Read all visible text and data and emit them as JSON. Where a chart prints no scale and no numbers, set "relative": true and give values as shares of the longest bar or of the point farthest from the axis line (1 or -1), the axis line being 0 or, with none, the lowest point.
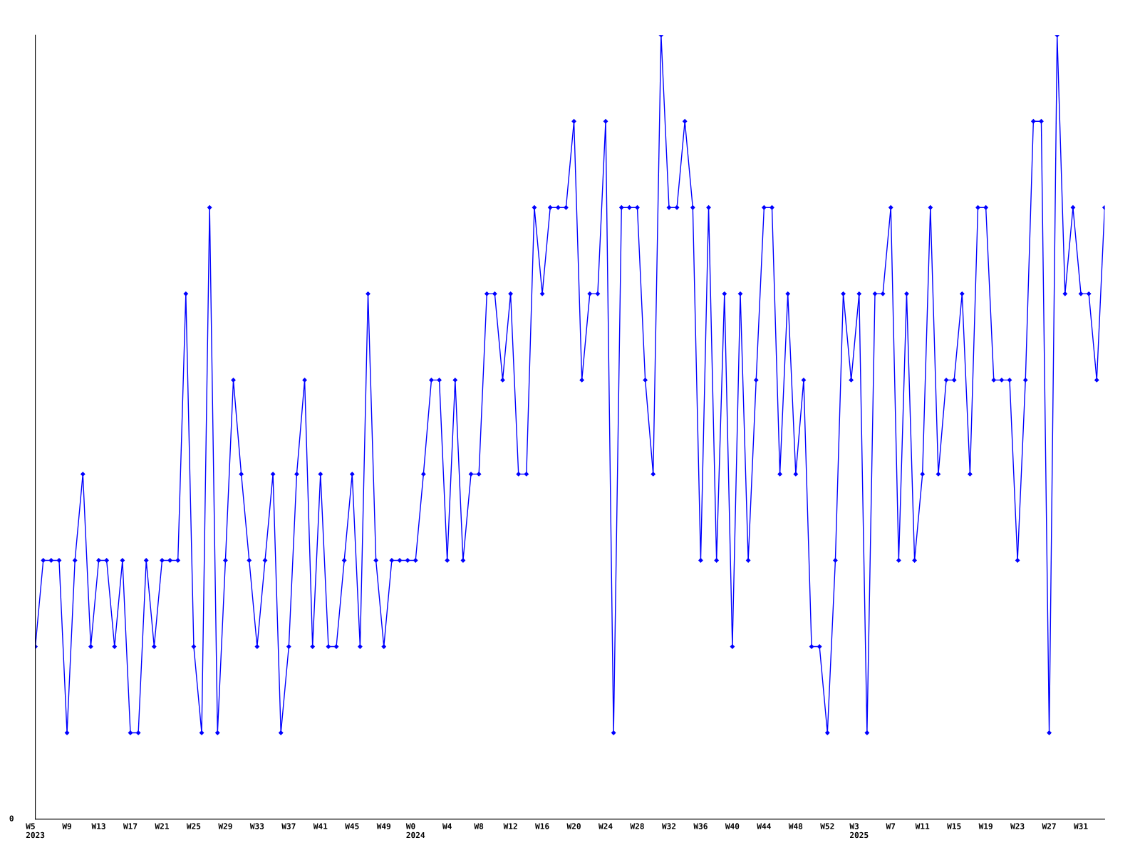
{
  "chart_data": {
    "type": "line",
    "relative": true,
    "categories": [
      "W5\n2023",
      null,
      null,
      null,
      "W9",
      null,
      null,
      null,
      "W13",
      null,
      null,
      null,
      "W17",
      null,
      null,
      null,
      "W21",
      null,
      null,
      null,
      "W25",
      null,
      null,
      null,
      "W29",
      null,
      null,
      null,
      "W33",
      null,
      null,
      null,
      "W37",
      null,
      null,
      null,
      "W41",
      null,
      null,
      null,
      "W45",
      null,
      null,
      null,
      "W49",
      null,
      null,
      null,
      "W0\n2024",
      null,
      null,
      null,
      "W4",
      null,
      null,
      null,
      "W8",
      null,
      null,
      null,
      "W12",
      null,
      null,
      null,
      "W16",
      null,
      null,
      null,
      "W20",
      null,
      null,
      null,
      "W24",
      null,
      null,
      null,
      "W28",
      null,
      null,
      null,
      "W32",
      null,
      null,
      null,
      "W36",
      null,
      null,
      null,
      "W40",
      null,
      null,
      null,
      "W44",
      null,
      null,
      null,
      "W48",
      null,
      null,
      null,
      "W52",
      null,
      null,
      null,
      "W3\n2025",
      null,
      null,
      null,
      "W7",
      null,
      null,
      null,
      "W11",
      null,
      null,
      null,
      "W15",
      null,
      null,
      null,
      "W19",
      null,
      null,
      null,
      "W23",
      null,
      null,
      null,
      "W27",
      null,
      null,
      null,
      "W31",
      null,
      null,
      null
    ],
    "series": [
      {
        "color": "#0000ff",
        "values": [
          0.22,
          0.33,
          0.33,
          0.33,
          0.11,
          0.33,
          0.44,
          0.22,
          0.33,
          0.33,
          0.22,
          0.33,
          0.11,
          0.11,
          0.33,
          0.22,
          0.33,
          0.33,
          0.33,
          0.67,
          0.22,
          0.11,
          0.78,
          0.11,
          0.33,
          0.56,
          0.44,
          0.33,
          0.22,
          0.33,
          0.44,
          0.11,
          0.22,
          0.44,
          0.56,
          0.22,
          0.44,
          0.22,
          0.22,
          0.33,
          0.44,
          0.22,
          0.67,
          0.33,
          0.22,
          0.33,
          0.33,
          0.33,
          0.33,
          0.44,
          0.56,
          0.56,
          0.33,
          0.56,
          0.33,
          0.44,
          0.44,
          0.67,
          0.67,
          0.56,
          0.67,
          0.44,
          0.44,
          0.78,
          0.67,
          0.78,
          0.78,
          0.78,
          0.89,
          0.56,
          0.67,
          0.67,
          0.89,
          0.11,
          0.78,
          0.78,
          0.78,
          0.56,
          0.44,
          1,
          0.78,
          0.78,
          0.89,
          0.78,
          0.33,
          0.78,
          0.33,
          0.67,
          0.22,
          0.67,
          0.33,
          0.56,
          0.78,
          0.78,
          0.44,
          0.67,
          0.44,
          0.56,
          0.22,
          0.22,
          0.11,
          0.33,
          0.67,
          0.56,
          0.67,
          0.11,
          0.67,
          0.67,
          0.78,
          0.33,
          0.67,
          0.33,
          0.44,
          0.78,
          0.44,
          0.56,
          0.56,
          0.67,
          0.44,
          0.78,
          0.78,
          0.56,
          0.56,
          0.56,
          0.33,
          0.56,
          0.89,
          0.89,
          0.11,
          1,
          0.67,
          0.78,
          0.67,
          0.67,
          0.56,
          0.78
        ]
      }
    ],
    "annotations": [
      "0"
    ],
    "grid": false,
    "legend": false,
    "marker": "diamond",
    "line_style": "solid"
  }
}
